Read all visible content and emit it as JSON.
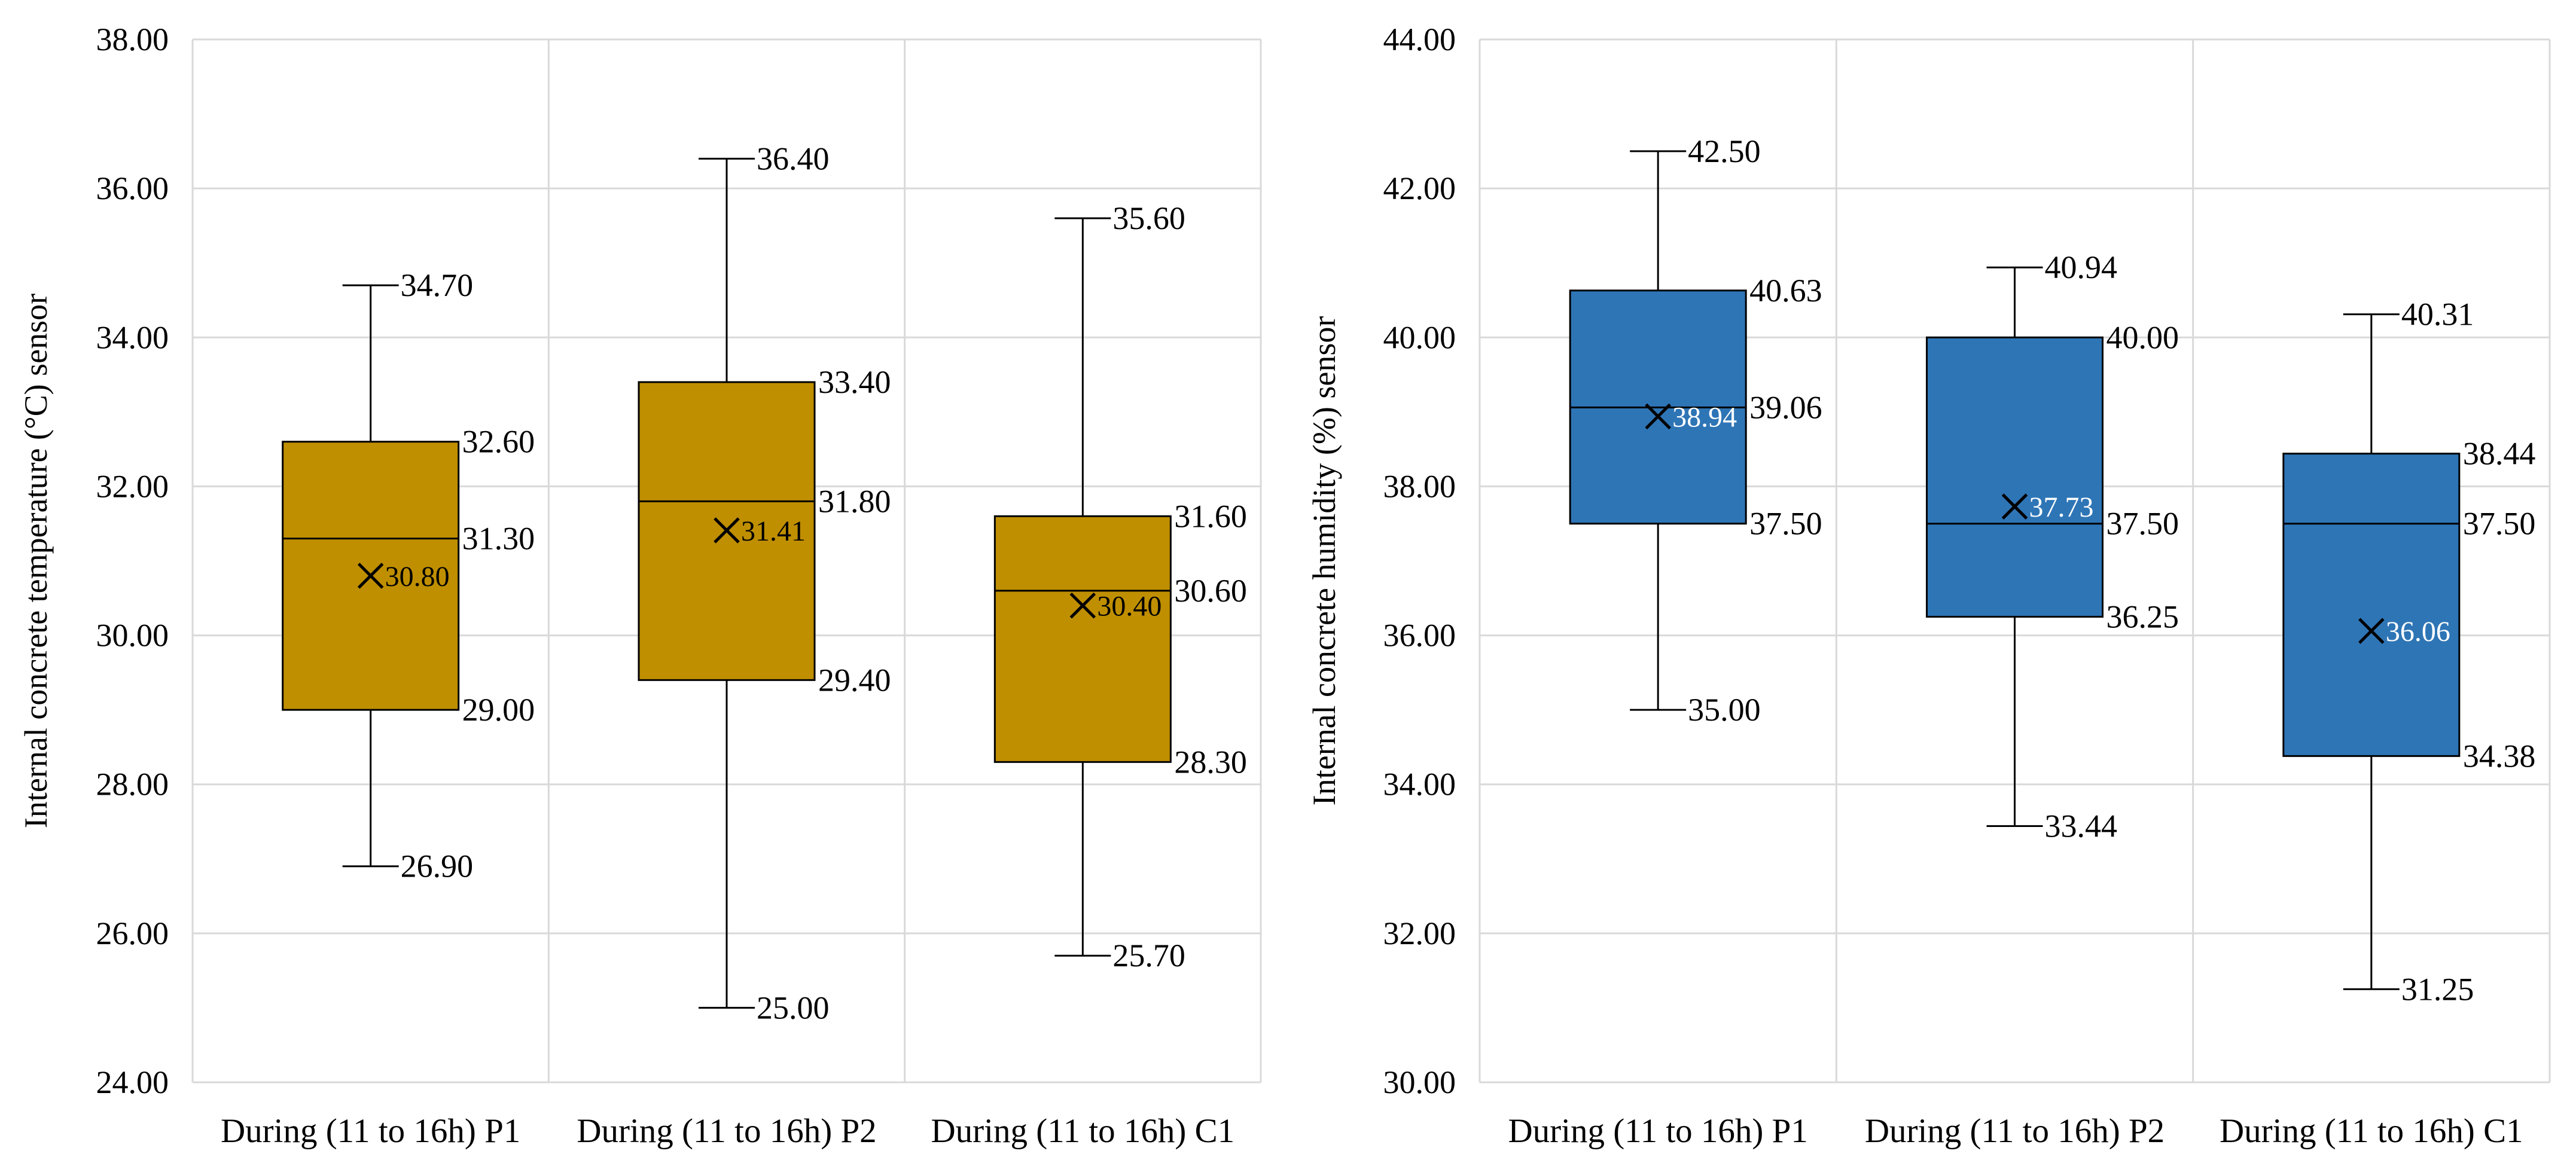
{
  "chart_data": [
    {
      "type": "box",
      "title": "",
      "ylabel": "Internal concrete temperature (°C) sensor",
      "xlabel": "",
      "ylim": [
        24,
        38
      ],
      "ytick_step": 2,
      "yticks": [
        "24.00",
        "26.00",
        "28.00",
        "30.00",
        "32.00",
        "34.00",
        "36.00",
        "38.00"
      ],
      "grid": true,
      "box_color": "#bf8f00",
      "mean_label_color": "#000000",
      "categories": [
        "During (11 to 16h) P1",
        "During (11 to 16h) P2",
        "During (11 to 16h) C1"
      ],
      "boxes": [
        {
          "min": 26.9,
          "q1": 29.0,
          "median": 31.3,
          "q3": 32.6,
          "max": 34.7,
          "mean": 30.8,
          "labels": {
            "min": "26.90",
            "q1": "29.00",
            "median": "31.30",
            "q3": "32.60",
            "max": "34.70",
            "mean": "30.80"
          }
        },
        {
          "min": 25.0,
          "q1": 29.4,
          "median": 31.8,
          "q3": 33.4,
          "max": 36.4,
          "mean": 31.41,
          "labels": {
            "min": "25.00",
            "q1": "29.40",
            "median": "31.80",
            "q3": "33.40",
            "max": "36.40",
            "mean": "31.41"
          }
        },
        {
          "min": 25.7,
          "q1": 28.3,
          "median": 30.6,
          "q3": 31.6,
          "max": 35.6,
          "mean": 30.4,
          "labels": {
            "min": "25.70",
            "q1": "28.30",
            "median": "30.60",
            "q3": "31.60",
            "max": "35.60",
            "mean": "30.40"
          }
        }
      ]
    },
    {
      "type": "box",
      "title": "",
      "ylabel": "Internal concrete humidity (%) sensor",
      "xlabel": "",
      "ylim": [
        30,
        44
      ],
      "ytick_step": 2,
      "yticks": [
        "30.00",
        "32.00",
        "34.00",
        "36.00",
        "38.00",
        "40.00",
        "42.00",
        "44.00"
      ],
      "grid": true,
      "box_color": "#2e75b6",
      "mean_label_color": "#ffffff",
      "categories": [
        "During (11 to 16h) P1",
        "During (11 to 16h) P2",
        "During (11 to 16h) C1"
      ],
      "boxes": [
        {
          "min": 35.0,
          "q1": 37.5,
          "median": 39.06,
          "q3": 40.63,
          "max": 42.5,
          "mean": 38.94,
          "labels": {
            "min": "35.00",
            "q1": "37.50",
            "median": "39.06",
            "q3": "40.63",
            "max": "42.50",
            "mean": "38.94"
          }
        },
        {
          "min": 33.44,
          "q1": 36.25,
          "median": 37.5,
          "q3": 40.0,
          "max": 40.94,
          "mean": 37.73,
          "labels": {
            "min": "33.44",
            "q1": "36.25",
            "median": "37.50",
            "q3": "40.00",
            "max": "40.94",
            "mean": "37.73"
          }
        },
        {
          "min": 31.25,
          "q1": 34.38,
          "median": 37.5,
          "q3": 38.44,
          "max": 40.31,
          "mean": 36.06,
          "labels": {
            "min": "31.25",
            "q1": "34.38",
            "median": "37.50",
            "q3": "38.44",
            "max": "40.31",
            "mean": "36.06"
          }
        }
      ]
    }
  ]
}
